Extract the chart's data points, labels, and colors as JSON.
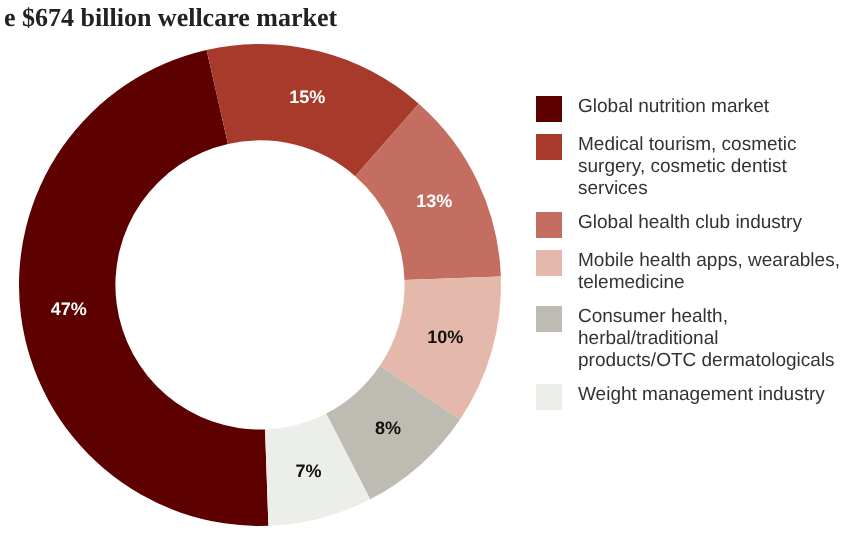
{
  "chart_data": {
    "type": "donut",
    "title": "e $674 billion wellcare market",
    "categories": [
      "Global nutrition market",
      "Medical tourism, cosmetic surgery, cosmetic dentist services",
      "Global health club industry",
      "Mobile health apps, wearables, telemedicine",
      "Consumer health, herbal/traditional products/OTC dermatologicals",
      "Weight management industry"
    ],
    "values": [
      47,
      15,
      13,
      10,
      8,
      7
    ],
    "colors": [
      "#5c0000",
      "#a83a2c",
      "#c46e62",
      "#e5b8ac",
      "#bdbbb2",
      "#eceeea"
    ],
    "value_labels": [
      "47%",
      "15%",
      "13%",
      "10%",
      "8%",
      "7%"
    ],
    "legend": "right"
  }
}
